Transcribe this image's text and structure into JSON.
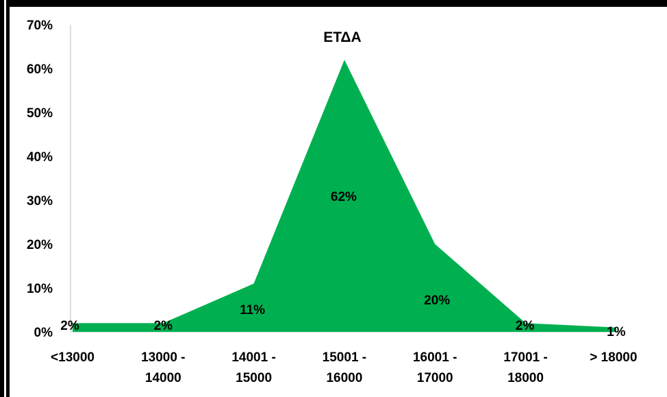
{
  "chart_data": {
    "type": "area",
    "title": "ΕΤΔΑ",
    "categories": [
      [
        "<13000"
      ],
      [
        "13000 -",
        "14000"
      ],
      [
        "14001 -",
        "15000"
      ],
      [
        "15001 -",
        "16000"
      ],
      [
        "16001 -",
        "17000"
      ],
      [
        "17001 -",
        "18000"
      ],
      [
        "> 18000"
      ]
    ],
    "values": [
      2,
      2,
      11,
      62,
      20,
      2,
      1
    ],
    "data_labels": [
      "2%",
      "2%",
      "11%",
      "62%",
      "20%",
      "2%",
      "1%"
    ],
    "y_ticks": [
      "0%",
      "10%",
      "20%",
      "30%",
      "40%",
      "50%",
      "60%",
      "70%"
    ],
    "ylim": [
      0,
      70
    ],
    "grid": false,
    "fill_color": "#00b050",
    "axis_color": "#bfbfbf"
  }
}
